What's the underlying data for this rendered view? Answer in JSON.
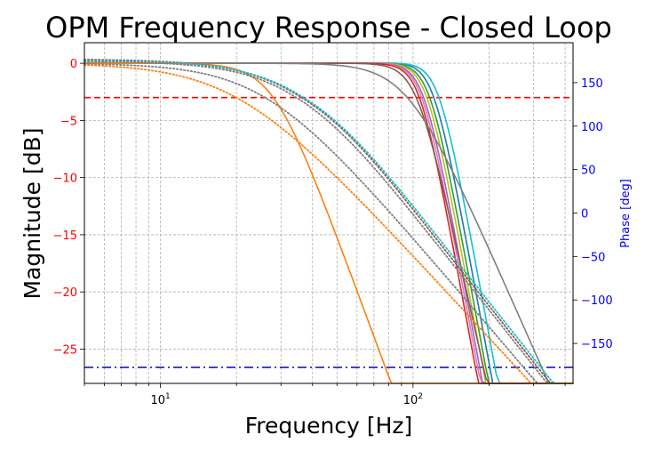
{
  "chart_data": {
    "type": "line",
    "title": "OPM Frequency Response - Closed Loop",
    "xlabel": "Frequency [Hz]",
    "ylabel": "Magnitude [dB]",
    "y2label": "Phase [deg]",
    "xscale": "log",
    "xlim": [
      5,
      430
    ],
    "ylim": [
      -28,
      1.8
    ],
    "y2lim": [
      -196,
      196
    ],
    "x_ticks": [
      {
        "value": 10,
        "label": "10^1"
      },
      {
        "value": 100,
        "label": "10^2"
      }
    ],
    "y_ticks": [
      0,
      -5,
      -10,
      -15,
      -20,
      -25
    ],
    "y_tick_labels": [
      "0",
      "−5",
      "−10",
      "−15",
      "−20",
      "−25"
    ],
    "y2_ticks": [
      150,
      100,
      50,
      0,
      -50,
      -100,
      -150
    ],
    "y2_tick_labels": [
      "150",
      "100",
      "50",
      "0",
      "−50",
      "−100",
      "−150"
    ],
    "grid": true,
    "colors": {
      "left_ticks": "#ff0000",
      "right_axis": "#0000ff"
    },
    "reference_lines": [
      {
        "y": -3,
        "color": "#ff0000",
        "style": "dashed"
      },
      {
        "y": -26.6,
        "color": "#0000cc",
        "style": "dashdot"
      }
    ],
    "series": [
      {
        "fc": 120,
        "n": 6,
        "peak": 0.4,
        "color": "#1f77b4",
        "style": "solid"
      },
      {
        "fc": 126,
        "n": 6,
        "peak": 0.3,
        "color": "#17becf",
        "style": "solid"
      },
      {
        "fc": 116,
        "n": 6,
        "peak": 0.2,
        "color": "#2ca02c",
        "style": "solid"
      },
      {
        "fc": 113,
        "n": 6,
        "peak": 0.2,
        "color": "#bcbd22",
        "style": "solid"
      },
      {
        "fc": 110,
        "n": 6,
        "peak": 0.1,
        "color": "#9467bd",
        "style": "solid"
      },
      {
        "fc": 108,
        "n": 6,
        "peak": 0.1,
        "color": "#e377c2",
        "style": "solid"
      },
      {
        "fc": 106,
        "n": 6,
        "peak": 0.0,
        "color": "#d62728",
        "style": "solid"
      },
      {
        "fc": 103,
        "n": 5,
        "peak": 0.0,
        "color": "#8c564b",
        "style": "solid"
      },
      {
        "fc": 95,
        "n": 2.5,
        "peak": 0.0,
        "color": "#7f7f7f",
        "style": "solid"
      },
      {
        "fc": 28,
        "n": 3,
        "peak": 0.0,
        "color": "#ff7f0e",
        "style": "solid"
      },
      {
        "fc": 35,
        "n": 1.4,
        "peak": 0.4,
        "color": "#8c564b",
        "style": "dotted"
      },
      {
        "fc": 36,
        "n": 1.4,
        "peak": 0.3,
        "color": "#17becf",
        "style": "dotted"
      },
      {
        "fc": 34,
        "n": 1.4,
        "peak": 0.2,
        "color": "#7f7f7f",
        "style": "dotted"
      },
      {
        "fc": 26,
        "n": 1.3,
        "peak": 0.0,
        "color": "#7f7f7f",
        "style": "dotted"
      },
      {
        "fc": 20,
        "n": 1.2,
        "peak": 0.0,
        "color": "#ff7f0e",
        "style": "dotted"
      }
    ]
  }
}
